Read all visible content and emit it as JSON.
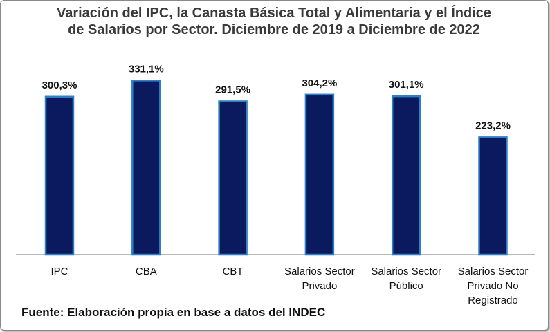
{
  "chart_data": {
    "type": "bar",
    "title": "Variación del IPC, la Canasta Básica Total y Alimentaria y el Índice de Salarios por Sector. Diciembre de 2019 a Diciembre de 2022",
    "categories": [
      "IPC",
      "CBA",
      "CBT",
      "Salarios Sector Privado",
      "Salarios Sector Público",
      "Salarios Sector Privado No Registrado"
    ],
    "values": [
      300.3,
      331.1,
      291.5,
      304.2,
      301.1,
      223.2
    ],
    "value_labels": [
      "300,3%",
      "331,1%",
      "291,5%",
      "304,2%",
      "301,1%",
      "223,2%"
    ],
    "color": "#0b1a5e",
    "source": "Fuente: Elaboración propia en base a datos del INDEC"
  }
}
